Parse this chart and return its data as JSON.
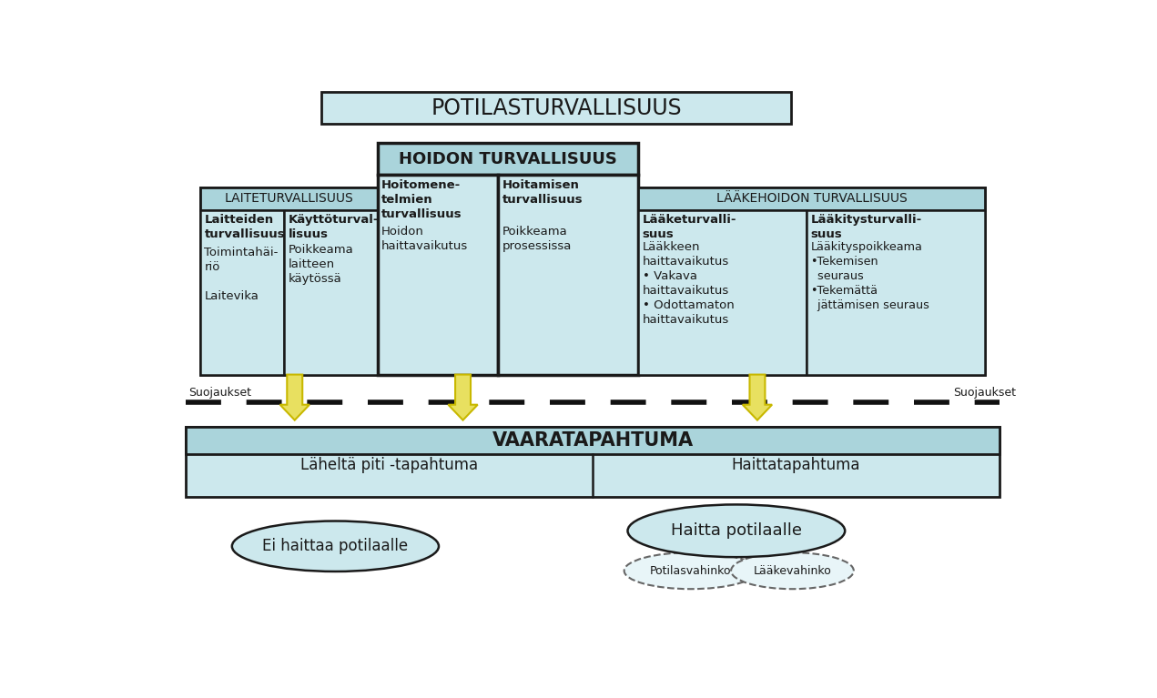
{
  "bg_color": "#ffffff",
  "box_fill_light": "#cce8ed",
  "box_fill_header": "#aad4db",
  "box_stroke": "#1a1a1a",
  "text_dark": "#1a1a1a",
  "arrow_fill": "#e8e060",
  "arrow_stroke": "#c8b800",
  "dashed_line_color": "#111111",
  "title_top": "POTILASTURVALLISUUS",
  "title_hoidon": "HOIDON TURVALLISUUS",
  "title_laite": "LAITETURVALLISUUS",
  "title_laakehoidon": "LÄÄKEHOIDON TURVALLISUUS",
  "col1_header": "Laitteiden\nturvallisuus",
  "col1_body": "Toimintahäi-\nriö\n\nLaitevika",
  "col2_header": "Käyttöturval-\nlisuus",
  "col2_body": "Poikkeama\nlaitteen\nkäytössä",
  "col3_header": "Hoitomene-\ntelmien\nturvallisuus",
  "col3_body": "Hoidon\nhaittavaikutus",
  "col4_header": "Hoitamisen\nturvallisuus",
  "col4_body": "Poikkeama\nprosessissa",
  "col5_header": "Lääketurvalli-\nsuus",
  "col5_body": "Lääkkeen\nhaittavaikutus\n• Vakava\nhaittavaikutus\n• Odottamaton\nhaittavaikutus",
  "col6_header": "Lääkitysturvalli-\nsuus",
  "col6_body": "Lääkityspoikkeama\n•Tekemisen\n  seuraus\n•Tekemättä\n  jättämisen seuraus",
  "suojaukset_left": "Suojaukset",
  "suojaukset_right": "Suojaukset",
  "vaara_title": "VAARATAPAHTUMA",
  "vaara_left": "Läheltä piti -tapahtuma",
  "vaara_right": "Haittatapahtuma",
  "ellipse1": "Ei haittaa potilaalle",
  "ellipse2": "Haitta potilaalle",
  "ellipse3a": "Potilasvahinko",
  "ellipse3b": "Lääkevahinko"
}
